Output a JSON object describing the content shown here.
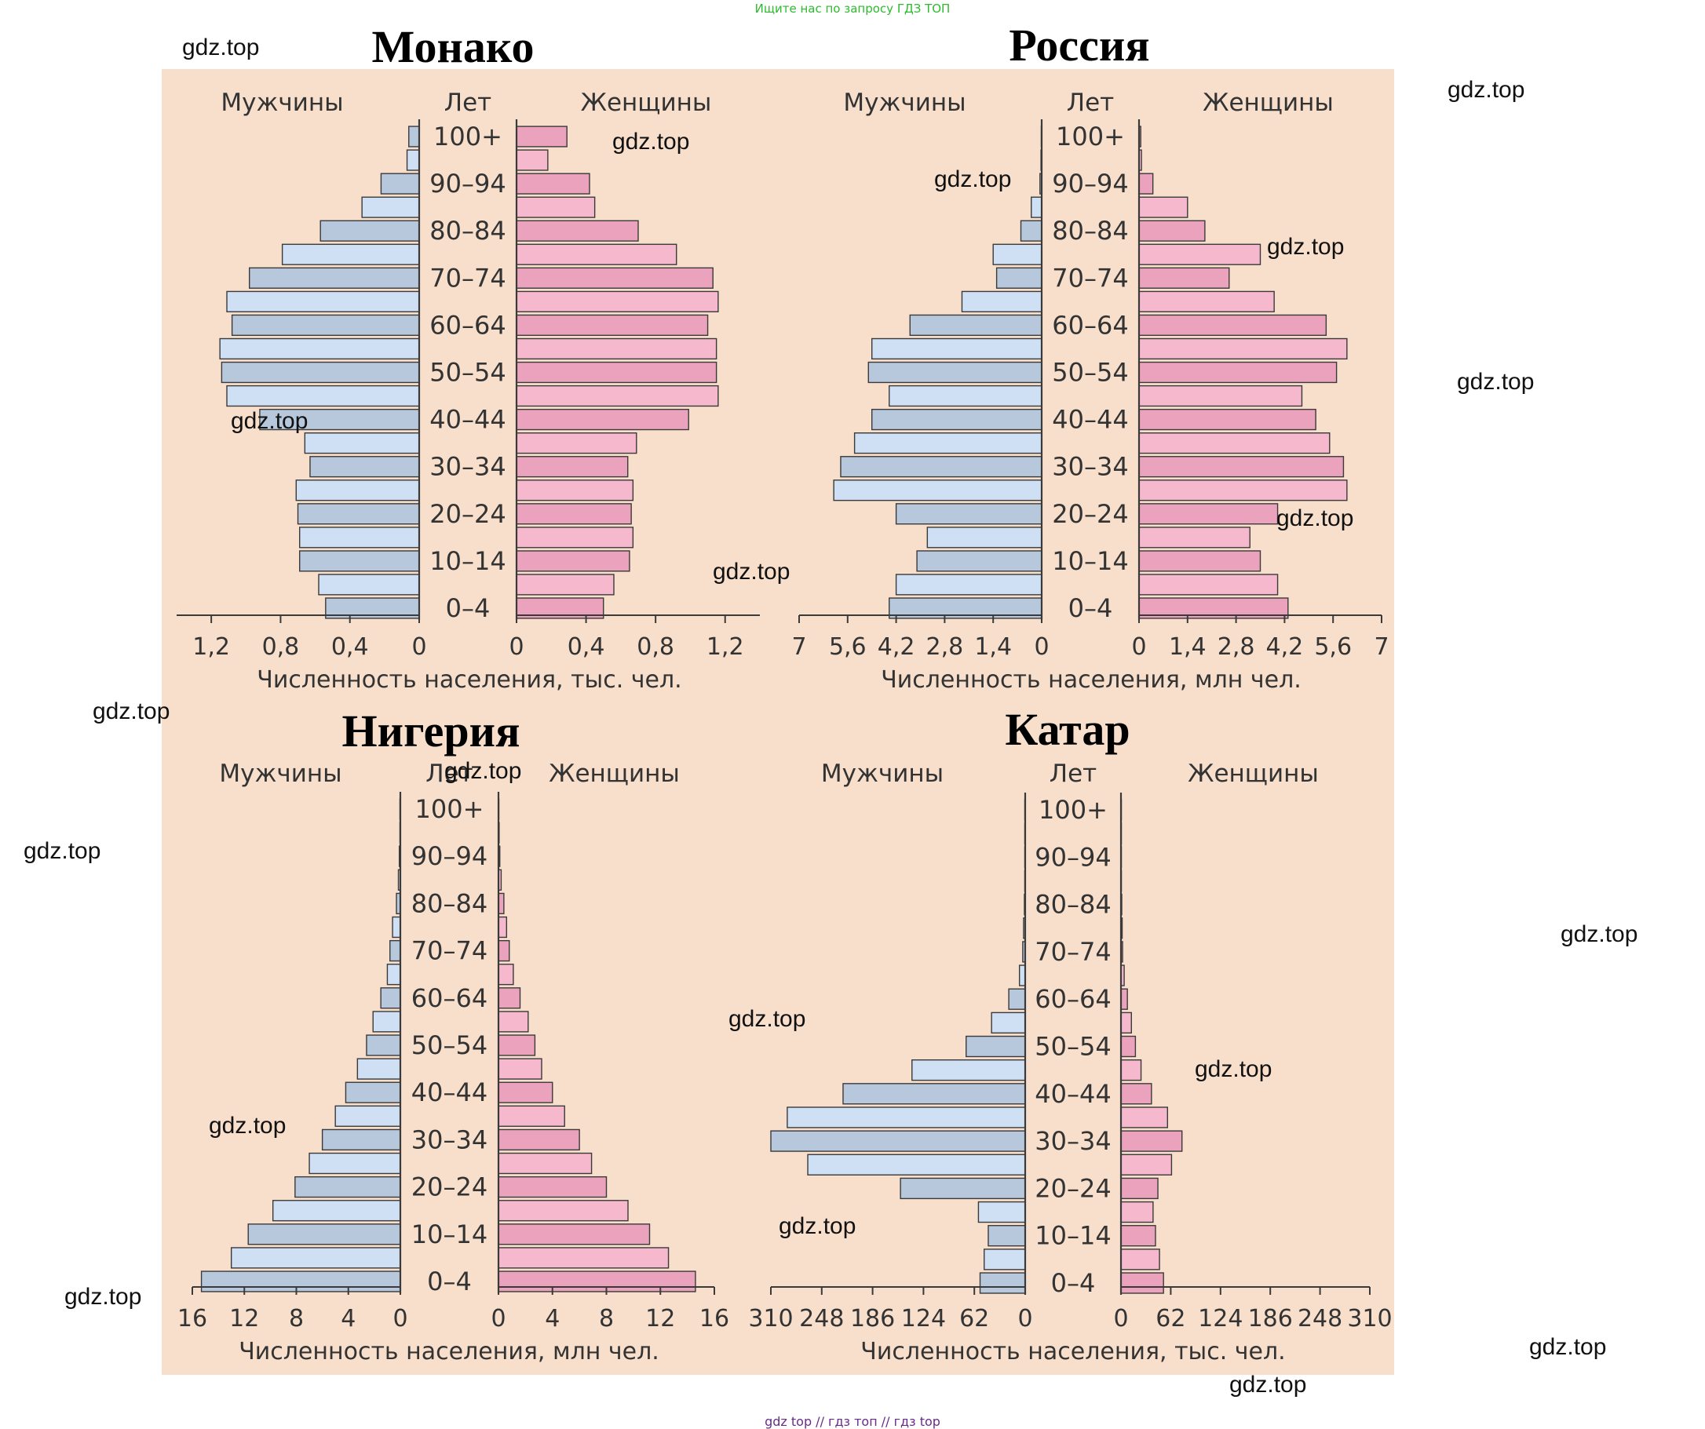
{
  "top_banner": "Ищите нас по запросу ГДЗ ТОП",
  "bottom_banner": "gdz top  //  гдз топ  //  гдз top",
  "watermark": "gdz.top",
  "colors": {
    "panel": "#f8dfcb",
    "male_light": "#cfe0f4",
    "male_dark": "#b7c7dc",
    "female_light": "#f6b8cd",
    "female_dark": "#eba2bc",
    "stroke": "#3a3a3a",
    "text": "#333333"
  },
  "chart_data": [
    {
      "type": "bar",
      "title": "Монако",
      "male_label": "Мужчины",
      "female_label": "Женщины",
      "age_label": "Лет",
      "xlabel": "Численность населения, тыс. чел.",
      "categories": [
        "0–4",
        "5–9",
        "10–14",
        "15–19",
        "20–24",
        "25–29",
        "30–34",
        "35–39",
        "40–44",
        "45–49",
        "50–54",
        "55–59",
        "60–64",
        "65–69",
        "70–74",
        "75–79",
        "80–84",
        "85–89",
        "90–94",
        "95–99",
        "100+"
      ],
      "age_tick_labels": [
        "0–4",
        "10–14",
        "20–24",
        "30–34",
        "40–44",
        "50–54",
        "60–64",
        "70–74",
        "80–84",
        "90–94",
        "100+"
      ],
      "max": 1.4,
      "left_ticks": [
        {
          "v": 1.2,
          "label": "1,2"
        },
        {
          "v": 0.8,
          "label": "0,8"
        },
        {
          "v": 0.4,
          "label": "0,4"
        },
        {
          "v": 0,
          "label": "0"
        }
      ],
      "right_ticks": [
        {
          "v": 0,
          "label": "0"
        },
        {
          "v": 0.4,
          "label": "0,4"
        },
        {
          "v": 0.8,
          "label": "0,8"
        },
        {
          "v": 1.2,
          "label": "1,2"
        }
      ],
      "series": [
        {
          "name": "Мужчины",
          "values": [
            0.54,
            0.58,
            0.69,
            0.69,
            0.7,
            0.71,
            0.63,
            0.66,
            0.92,
            1.11,
            1.14,
            1.15,
            1.08,
            1.11,
            0.98,
            0.79,
            0.57,
            0.33,
            0.22,
            0.07,
            0.06
          ]
        },
        {
          "name": "Женщины",
          "values": [
            0.5,
            0.56,
            0.65,
            0.67,
            0.66,
            0.67,
            0.64,
            0.69,
            0.99,
            1.16,
            1.15,
            1.15,
            1.1,
            1.16,
            1.13,
            0.92,
            0.7,
            0.45,
            0.42,
            0.18,
            0.29
          ]
        }
      ]
    },
    {
      "type": "bar",
      "title": "Россия",
      "male_label": "Мужчины",
      "female_label": "Женщины",
      "age_label": "Лет",
      "xlabel": "Численность населения, млн чел.",
      "categories": [
        "0–4",
        "5–9",
        "10–14",
        "15–19",
        "20–24",
        "25–29",
        "30–34",
        "35–39",
        "40–44",
        "45–49",
        "50–54",
        "55–59",
        "60–64",
        "65–69",
        "70–74",
        "75–79",
        "80–84",
        "85–89",
        "90–94",
        "95–99",
        "100+"
      ],
      "age_tick_labels": [
        "0–4",
        "10–14",
        "20–24",
        "30–34",
        "40–44",
        "50–54",
        "60–64",
        "70–74",
        "80–84",
        "90–94",
        "100+"
      ],
      "max": 7,
      "left_ticks": [
        {
          "v": 7,
          "label": "7"
        },
        {
          "v": 5.6,
          "label": "5,6"
        },
        {
          "v": 4.2,
          "label": "4,2"
        },
        {
          "v": 2.8,
          "label": "2,8"
        },
        {
          "v": 1.4,
          "label": "1,4"
        },
        {
          "v": 0,
          "label": "0"
        }
      ],
      "right_ticks": [
        {
          "v": 0,
          "label": "0"
        },
        {
          "v": 1.4,
          "label": "1,4"
        },
        {
          "v": 2.8,
          "label": "2,8"
        },
        {
          "v": 4.2,
          "label": "4,2"
        },
        {
          "v": 5.6,
          "label": "5,6"
        },
        {
          "v": 7,
          "label": "7"
        }
      ],
      "series": [
        {
          "name": "Мужчины",
          "values": [
            4.4,
            4.2,
            3.6,
            3.3,
            4.2,
            6.0,
            5.8,
            5.4,
            4.9,
            4.4,
            5.0,
            4.9,
            3.8,
            2.3,
            1.3,
            1.4,
            0.6,
            0.3,
            0.05,
            0.02,
            0.01
          ]
        },
        {
          "name": "Женщины",
          "values": [
            4.3,
            4.0,
            3.5,
            3.2,
            4.0,
            6.0,
            5.9,
            5.5,
            5.1,
            4.7,
            5.7,
            6.0,
            5.4,
            3.9,
            2.6,
            3.5,
            1.9,
            1.4,
            0.4,
            0.07,
            0.05
          ]
        }
      ]
    },
    {
      "type": "bar",
      "title": "Нигерия",
      "male_label": "Мужчины",
      "female_label": "Женщины",
      "age_label": "Лет",
      "xlabel": "Численность населения, млн чел.",
      "categories": [
        "0–4",
        "5–9",
        "10–14",
        "15–19",
        "20–24",
        "25–29",
        "30–34",
        "35–39",
        "40–44",
        "45–49",
        "50–54",
        "55–59",
        "60–64",
        "65–69",
        "70–74",
        "75–79",
        "80–84",
        "85–89",
        "90–94",
        "95–99",
        "100+"
      ],
      "age_tick_labels": [
        "0–4",
        "10–14",
        "20–24",
        "30–34",
        "40–44",
        "50–54",
        "60–64",
        "70–74",
        "80–84",
        "90–94",
        "100+"
      ],
      "max": 16,
      "left_ticks": [
        {
          "v": 16,
          "label": "16"
        },
        {
          "v": 12,
          "label": "12"
        },
        {
          "v": 8,
          "label": "8"
        },
        {
          "v": 4,
          "label": "4"
        },
        {
          "v": 0,
          "label": "0"
        }
      ],
      "right_ticks": [
        {
          "v": 0,
          "label": "0"
        },
        {
          "v": 4,
          "label": "4"
        },
        {
          "v": 8,
          "label": "8"
        },
        {
          "v": 12,
          "label": "12"
        },
        {
          "v": 16,
          "label": "16"
        }
      ],
      "series": [
        {
          "name": "Мужчины",
          "values": [
            15.3,
            13.0,
            11.7,
            9.8,
            8.1,
            7.0,
            6.0,
            5.0,
            4.2,
            3.3,
            2.6,
            2.1,
            1.5,
            1.0,
            0.8,
            0.6,
            0.3,
            0.15,
            0.08,
            0.03,
            0.01
          ]
        },
        {
          "name": "Женщины",
          "values": [
            14.6,
            12.6,
            11.2,
            9.6,
            8.0,
            6.9,
            6.0,
            4.9,
            4.0,
            3.2,
            2.7,
            2.2,
            1.6,
            1.1,
            0.8,
            0.6,
            0.4,
            0.2,
            0.1,
            0.05,
            0.02
          ]
        }
      ]
    },
    {
      "type": "bar",
      "title": "Катар",
      "male_label": "Мужчины",
      "female_label": "Женщины",
      "age_label": "Лет",
      "xlabel": "Численность населения, тыс. чел.",
      "categories": [
        "0–4",
        "5–9",
        "10–14",
        "15–19",
        "20–24",
        "25–29",
        "30–34",
        "35–39",
        "40–44",
        "45–49",
        "50–54",
        "55–59",
        "60–64",
        "65–69",
        "70–74",
        "75–79",
        "80–84",
        "85–89",
        "90–94",
        "95–99",
        "100+"
      ],
      "age_tick_labels": [
        "0–4",
        "10–14",
        "20–24",
        "30–34",
        "40–44",
        "50–54",
        "60–64",
        "70–74",
        "80–84",
        "90–94",
        "100+"
      ],
      "max": 310,
      "left_ticks": [
        {
          "v": 310,
          "label": "310"
        },
        {
          "v": 248,
          "label": "248"
        },
        {
          "v": 186,
          "label": "186"
        },
        {
          "v": 124,
          "label": "124"
        },
        {
          "v": 62,
          "label": "62"
        },
        {
          "v": 0,
          "label": "0"
        }
      ],
      "right_ticks": [
        {
          "v": 0,
          "label": "0"
        },
        {
          "v": 62,
          "label": "62"
        },
        {
          "v": 124,
          "label": "124"
        },
        {
          "v": 186,
          "label": "186"
        },
        {
          "v": 248,
          "label": "248"
        },
        {
          "v": 310,
          "label": "310"
        }
      ],
      "series": [
        {
          "name": "Мужчины",
          "values": [
            55,
            50,
            45,
            57,
            152,
            265,
            310,
            290,
            222,
            138,
            72,
            41,
            20,
            7,
            3,
            2,
            1,
            0.5,
            0.3,
            0.2,
            0.1
          ]
        },
        {
          "name": "Женщины",
          "values": [
            53,
            48,
            43,
            40,
            46,
            63,
            76,
            58,
            38,
            25,
            18,
            13,
            8,
            4,
            2,
            1.5,
            1,
            0.5,
            0.3,
            0.2,
            0.1
          ]
        }
      ]
    }
  ]
}
